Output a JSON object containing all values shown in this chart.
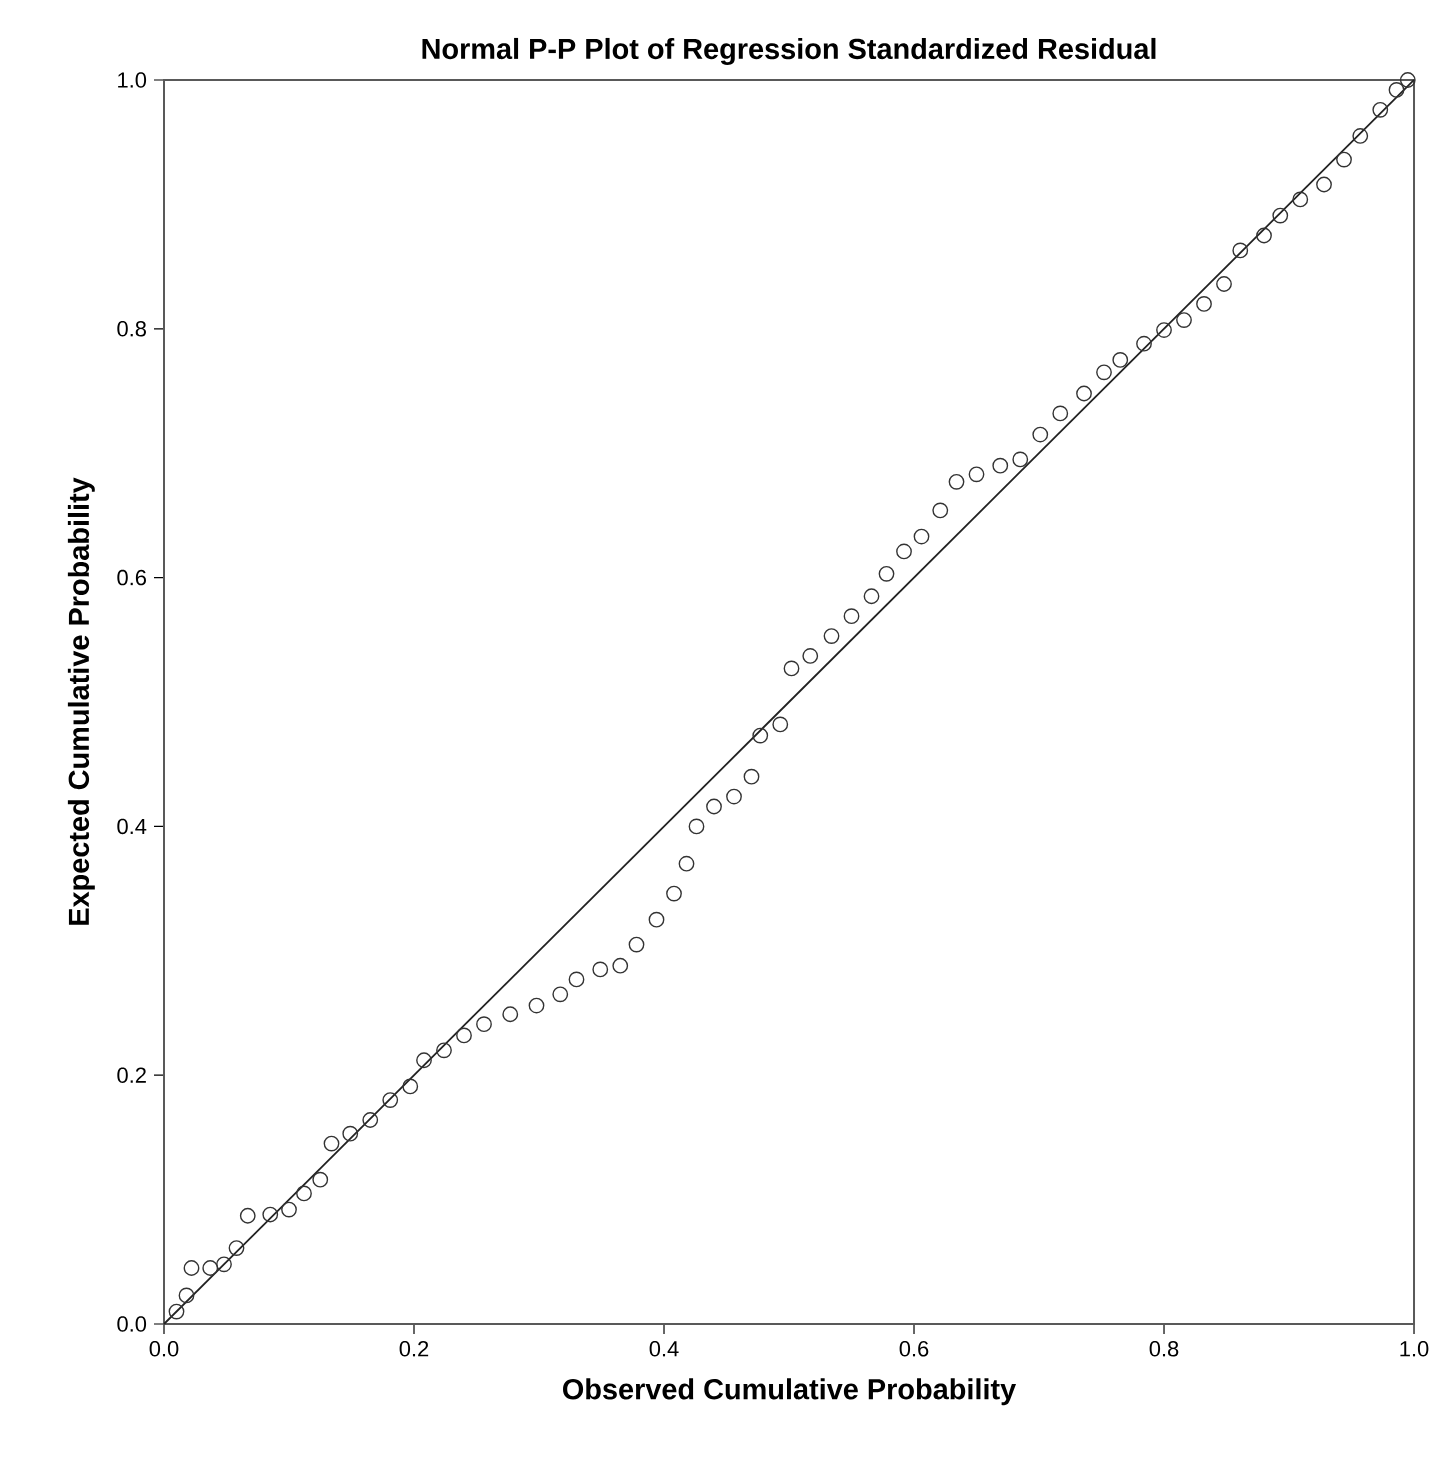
{
  "chart_data": {
    "type": "scatter",
    "title": "Normal P-P Plot of Regression Standardized Residual",
    "xlabel": "Observed Cumulative Probability",
    "ylabel": "Expected Cumulative Probability",
    "xlim": [
      0,
      1
    ],
    "ylim": [
      0,
      1
    ],
    "xticks": [
      {
        "value": 0,
        "label": "0.0"
      },
      {
        "value": 0.2,
        "label": "0.2"
      },
      {
        "value": 0.4,
        "label": "0.4"
      },
      {
        "value": 0.6,
        "label": "0.6"
      },
      {
        "value": 0.8,
        "label": "0.8"
      },
      {
        "value": 1,
        "label": "1.0"
      }
    ],
    "yticks": [
      {
        "value": 0,
        "label": "0.0"
      },
      {
        "value": 0.2,
        "label": "0.2"
      },
      {
        "value": 0.4,
        "label": "0.4"
      },
      {
        "value": 0.6,
        "label": "0.6"
      },
      {
        "value": 0.8,
        "label": "0.8"
      },
      {
        "value": 1,
        "label": "1.0"
      }
    ],
    "grid": false,
    "marker": "circle",
    "series": [
      {
        "color": "#333333",
        "x": [
          0.01,
          0.018,
          0.022,
          0.037,
          0.048,
          0.058,
          0.067,
          0.085,
          0.1,
          0.112,
          0.125,
          0.134,
          0.149,
          0.165,
          0.181,
          0.197,
          0.208,
          0.224,
          0.24,
          0.256,
          0.277,
          0.298,
          0.317,
          0.33,
          0.349,
          0.365,
          0.378,
          0.394,
          0.408,
          0.418,
          0.426,
          0.44,
          0.456,
          0.47,
          0.477,
          0.493,
          0.502,
          0.517,
          0.534,
          0.55,
          0.566,
          0.578,
          0.592,
          0.606,
          0.621,
          0.634,
          0.65,
          0.669,
          0.685,
          0.701,
          0.717,
          0.736,
          0.752,
          0.765,
          0.784,
          0.8,
          0.816,
          0.832,
          0.848,
          0.861,
          0.88,
          0.893,
          0.909,
          0.928,
          0.944,
          0.957,
          0.973,
          0.986,
          0.995
        ],
        "values": [
          0.01,
          0.023,
          0.045,
          0.045,
          0.048,
          0.061,
          0.087,
          0.088,
          0.092,
          0.105,
          0.116,
          0.145,
          0.153,
          0.164,
          0.18,
          0.191,
          0.212,
          0.22,
          0.232,
          0.241,
          0.249,
          0.256,
          0.265,
          0.277,
          0.285,
          0.288,
          0.305,
          0.325,
          0.346,
          0.37,
          0.4,
          0.416,
          0.424,
          0.44,
          0.473,
          0.482,
          0.527,
          0.537,
          0.553,
          0.569,
          0.585,
          0.603,
          0.621,
          0.633,
          0.654,
          0.677,
          0.683,
          0.69,
          0.695,
          0.715,
          0.732,
          0.748,
          0.765,
          0.775,
          0.788,
          0.799,
          0.807,
          0.82,
          0.836,
          0.863,
          0.875,
          0.891,
          0.904,
          0.916,
          0.936,
          0.955,
          0.976,
          0.992,
          1.0
        ]
      },
      {
        "type": "line",
        "color": "#222222",
        "x": [
          0,
          1
        ],
        "values": [
          0,
          1
        ],
        "marker": "none"
      }
    ]
  }
}
